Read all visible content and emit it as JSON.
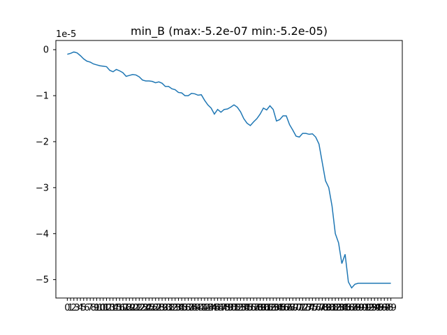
{
  "chart_data": {
    "type": "line",
    "title": "min_B (max:-5.2e-07 min:-5.2e-05)",
    "xlabel": "",
    "ylabel": "",
    "y_offset_label": "1e-5",
    "y_scale": 1e-05,
    "ylim": [
      -5.4,
      0.2
    ],
    "xlim": [
      -3.5,
      102.5
    ],
    "y_ticks": [
      0,
      -1,
      -2,
      -3,
      -4,
      -5
    ],
    "y_tick_labels": [
      "0",
      "−1",
      "−2",
      "−3",
      "−4",
      "−5"
    ],
    "x_ticks": [
      0,
      1,
      2,
      3,
      4,
      5,
      6,
      7,
      8,
      9,
      10,
      11,
      12,
      13,
      14,
      15,
      16,
      17,
      18,
      19,
      20,
      21,
      22,
      23,
      24,
      25,
      26,
      27,
      28,
      29,
      30,
      31,
      32,
      33,
      34,
      35,
      36,
      37,
      38,
      39,
      40,
      41,
      42,
      43,
      44,
      45,
      46,
      47,
      48,
      49,
      50,
      51,
      52,
      53,
      54,
      55,
      56,
      57,
      58,
      59,
      60,
      61,
      62,
      63,
      64,
      65,
      66,
      67,
      68,
      69,
      70,
      71,
      72,
      73,
      74,
      75,
      76,
      77,
      78,
      79,
      80,
      81,
      82,
      83,
      84,
      85,
      86,
      87,
      88,
      89,
      90,
      91,
      92,
      93,
      94,
      95,
      96,
      97,
      98,
      99
    ],
    "grid": false,
    "line_color": "#1f77b4",
    "series": [
      {
        "x": [
          0,
          1,
          2,
          3,
          4,
          5,
          6,
          7,
          8,
          9,
          10,
          11,
          12,
          13,
          14,
          15,
          16,
          17,
          18,
          19,
          20,
          21,
          22,
          23,
          24,
          25,
          26,
          27,
          28,
          29,
          30,
          31,
          32,
          33,
          34,
          35,
          36,
          37,
          38,
          39,
          40,
          41,
          42,
          43,
          44,
          45,
          46,
          47,
          48,
          49,
          50,
          51,
          52,
          53,
          54,
          55,
          56,
          57,
          58,
          59,
          60,
          61,
          62,
          63,
          64,
          65,
          66,
          67,
          68,
          69,
          70,
          71,
          72,
          73,
          74,
          75,
          76,
          77,
          78,
          79,
          80,
          81,
          82,
          83,
          84,
          85,
          86,
          87,
          88,
          89,
          90,
          91,
          92,
          93,
          94,
          95,
          96,
          97,
          98,
          99
        ],
        "y": [
          -0.1,
          -0.08,
          -0.05,
          -0.07,
          -0.13,
          -0.2,
          -0.25,
          -0.27,
          -0.31,
          -0.33,
          -0.35,
          -0.36,
          -0.37,
          -0.45,
          -0.48,
          -0.43,
          -0.46,
          -0.5,
          -0.58,
          -0.56,
          -0.54,
          -0.55,
          -0.59,
          -0.66,
          -0.68,
          -0.68,
          -0.69,
          -0.72,
          -0.7,
          -0.73,
          -0.8,
          -0.8,
          -0.85,
          -0.87,
          -0.93,
          -0.94,
          -1.0,
          -1.0,
          -0.95,
          -0.96,
          -0.99,
          -0.98,
          -1.1,
          -1.2,
          -1.27,
          -1.4,
          -1.3,
          -1.36,
          -1.3,
          -1.29,
          -1.25,
          -1.2,
          -1.25,
          -1.35,
          -1.5,
          -1.6,
          -1.65,
          -1.57,
          -1.5,
          -1.4,
          -1.27,
          -1.31,
          -1.22,
          -1.3,
          -1.55,
          -1.52,
          -1.44,
          -1.44,
          -1.63,
          -1.75,
          -1.88,
          -1.9,
          -1.82,
          -1.82,
          -1.84,
          -1.83,
          -1.9,
          -2.05,
          -2.45,
          -2.85,
          -3.0,
          -3.4,
          -4.0,
          -4.2,
          -4.65,
          -4.45,
          -5.05,
          -5.18,
          -5.1,
          -5.08,
          -5.08,
          -5.08,
          -5.08,
          -5.08,
          -5.08,
          -5.08,
          -5.08,
          -5.08,
          -5.08,
          -5.08
        ]
      }
    ]
  }
}
